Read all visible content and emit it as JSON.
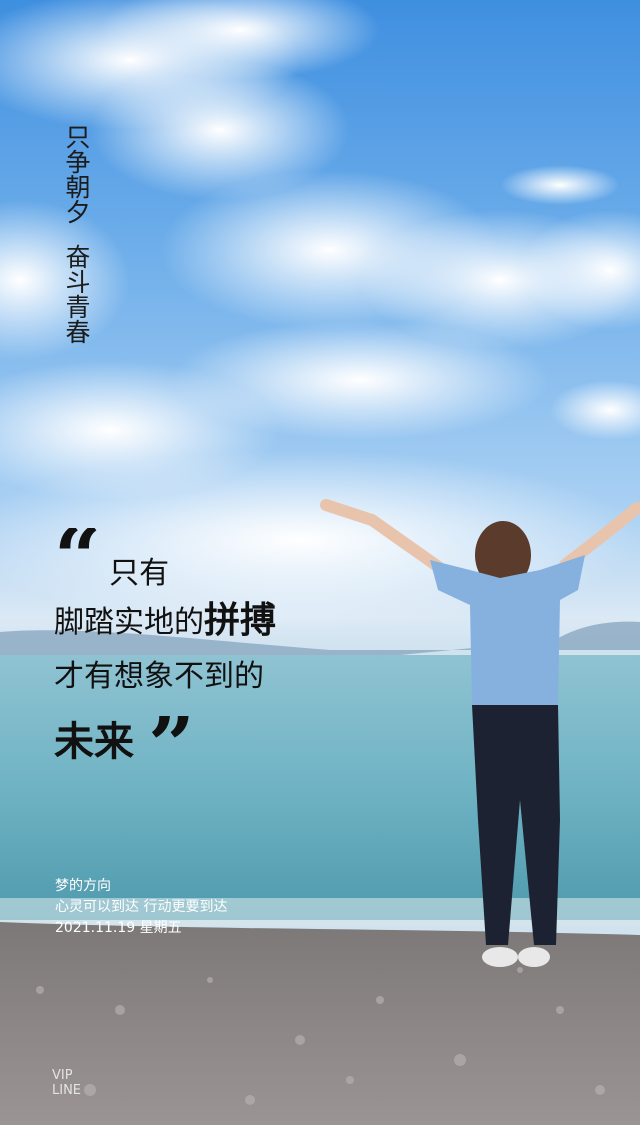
{
  "vertical_text": {
    "line1": "只争朝夕",
    "line2": "奋斗青春"
  },
  "quote": {
    "open_mark": "“",
    "line1": "只有",
    "line2_prefix": "脚踏实地的",
    "line2_bold": "拼搏",
    "line3": "才有想象不到的",
    "line4_bold": "未来",
    "close_mark": "”"
  },
  "caption": {
    "line1": "梦的方向",
    "line2": "心灵可以到达 行动更要到达",
    "line3": "2021.11.19 星期五"
  },
  "watermark": {
    "line1": "VIP",
    "line2": "LINE"
  },
  "colors": {
    "sky_top": "#3f8fe0",
    "sea": "#6fb3c4",
    "beach": "#8c8787",
    "text_dark": "#1c1c1c",
    "shirt": "#86b1df",
    "pants": "#1d2232"
  }
}
